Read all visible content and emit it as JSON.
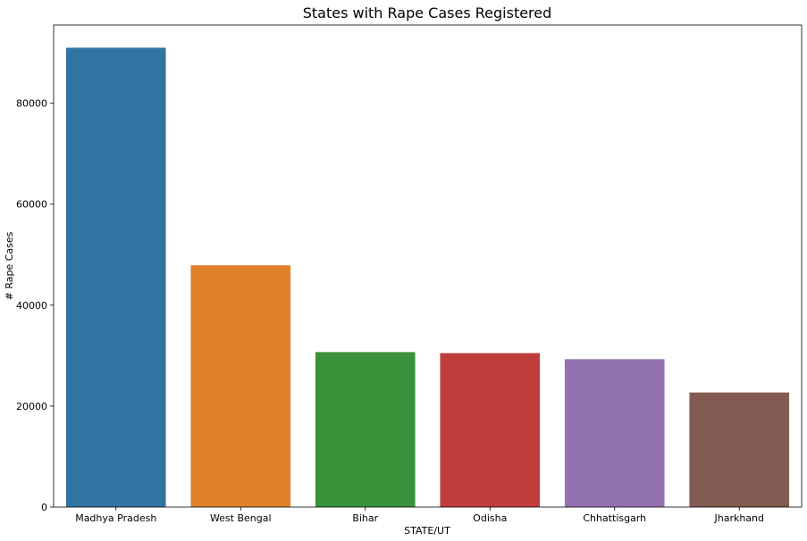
{
  "chart_data": {
    "type": "bar",
    "title": "States with Rape Cases Registered",
    "xlabel": "STATE/UT",
    "ylabel": "# Rape Cases",
    "categories": [
      "Madhya Pradesh",
      "West Bengal",
      "Bihar",
      "Odisha",
      "Chhattisgarh",
      "Jharkhand"
    ],
    "values": [
      91000,
      47900,
      30700,
      30500,
      29300,
      22700
    ],
    "colors": [
      "#3274a1",
      "#e1812c",
      "#3a923a",
      "#c03d3e",
      "#9372b2",
      "#845b53"
    ],
    "yticks": [
      0,
      20000,
      40000,
      60000,
      80000
    ],
    "ytick_labels": [
      "0",
      "20000",
      "40000",
      "60000",
      "80000"
    ],
    "ylim": [
      0,
      95500
    ],
    "grid": false,
    "legend": "none"
  }
}
